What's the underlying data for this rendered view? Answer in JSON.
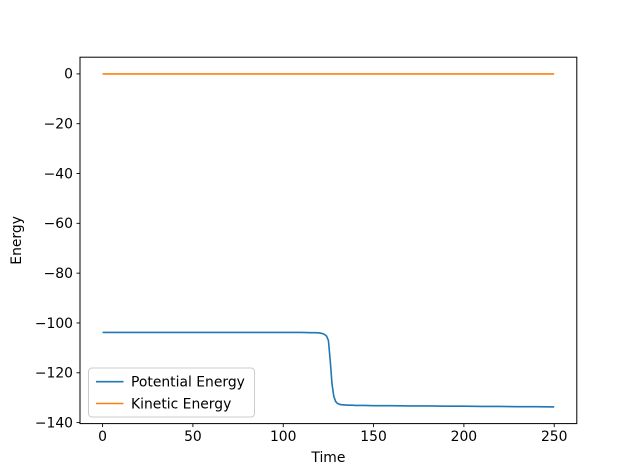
{
  "figure": {
    "background": "#ffffff"
  },
  "chart_data": {
    "type": "line",
    "title": "",
    "xlabel": "Time",
    "ylabel": "Energy",
    "xlim": [
      -12.5,
      262.5
    ],
    "ylim": [
      -140.4,
      6.7
    ],
    "xticks": [
      0,
      50,
      100,
      150,
      200,
      250
    ],
    "xtick_labels": [
      "0",
      "50",
      "100",
      "150",
      "200",
      "250"
    ],
    "yticks": [
      0,
      -20,
      -40,
      -60,
      -80,
      -100,
      -120,
      -140
    ],
    "ytick_labels": [
      "0",
      "−20",
      "−40",
      "−60",
      "−80",
      "−100",
      "−120",
      "−140"
    ],
    "grid": false,
    "axis_color": "#000000",
    "legend": {
      "position": "lower-left",
      "border_color": "#cccccc",
      "background": "#ffffff"
    },
    "x": [
      0,
      10,
      20,
      30,
      40,
      50,
      60,
      70,
      80,
      90,
      100,
      105,
      110,
      115,
      118,
      120,
      122,
      123,
      124,
      125,
      126,
      127,
      128,
      129,
      130,
      131,
      132,
      134,
      136,
      138,
      140,
      145,
      150,
      160,
      170,
      180,
      190,
      200,
      210,
      220,
      230,
      240,
      250
    ],
    "series": [
      {
        "name": "Potential Energy",
        "color": "#1f77b4",
        "values": [
          -103.8,
          -103.8,
          -103.8,
          -103.8,
          -103.8,
          -103.8,
          -103.8,
          -103.8,
          -103.8,
          -103.8,
          -103.8,
          -103.8,
          -103.8,
          -103.9,
          -103.9,
          -104.0,
          -104.3,
          -104.7,
          -105.3,
          -107.0,
          -115.0,
          -124.5,
          -129.5,
          -131.5,
          -132.3,
          -132.6,
          -132.8,
          -132.9,
          -133.0,
          -133.0,
          -133.1,
          -133.1,
          -133.2,
          -133.2,
          -133.3,
          -133.3,
          -133.4,
          -133.4,
          -133.5,
          -133.5,
          -133.6,
          -133.6,
          -133.7
        ]
      },
      {
        "name": "Kinetic Energy",
        "color": "#ff7f0e",
        "values": [
          0,
          0,
          0,
          0,
          0,
          0,
          0,
          0,
          0,
          0,
          0,
          0,
          0,
          0,
          0,
          0,
          0,
          0,
          0,
          0,
          0,
          0,
          0,
          0,
          0,
          0,
          0,
          0,
          0,
          0,
          0,
          0,
          0,
          0,
          0,
          0,
          0,
          0,
          0,
          0,
          0,
          0,
          0
        ]
      }
    ]
  }
}
